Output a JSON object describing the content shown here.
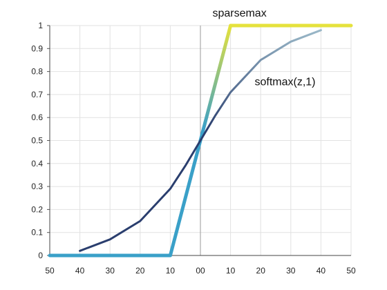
{
  "chart_data": {
    "type": "line",
    "title": "",
    "xlabel": "",
    "ylabel": "",
    "grid": true,
    "ylim": [
      0,
      1
    ],
    "y_ticks": [
      "0",
      "0.1",
      "0.2",
      "0.3",
      "0.4",
      "0.5",
      "0.6",
      "0.7",
      "0.8",
      "0.9",
      "1"
    ],
    "x_ticks": [
      "50",
      "40",
      "30",
      "20",
      "10",
      "00",
      "10",
      "20",
      "30",
      "40",
      "50"
    ],
    "series": [
      {
        "name": "sparsemax",
        "color": "#e6e23c",
        "low_color": "#3aa0c8",
        "x": [
          -50,
          -40,
          -30,
          -20,
          -10,
          -5,
          0,
          5,
          10,
          20,
          30,
          40,
          50
        ],
        "values": [
          0,
          0,
          0,
          0,
          0,
          0.25,
          0.5,
          0.75,
          1,
          1,
          1,
          1,
          1
        ]
      },
      {
        "name": "softmax(z,1)",
        "color": "#9ab8c8",
        "low_color": "#2a3e6e",
        "x": [
          -40,
          -30,
          -20,
          -10,
          -5,
          0,
          5,
          10,
          20,
          30,
          40
        ],
        "values": [
          0.02,
          0.07,
          0.15,
          0.29,
          0.39,
          0.5,
          0.61,
          0.71,
          0.85,
          0.93,
          0.98
        ]
      }
    ]
  }
}
